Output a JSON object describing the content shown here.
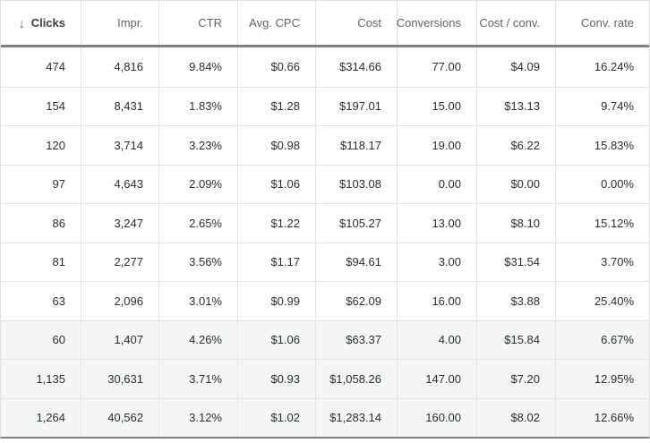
{
  "table": {
    "sort_icon": "↓",
    "columns": [
      {
        "key": "clicks",
        "label": "Clicks",
        "sorted": true
      },
      {
        "key": "impr",
        "label": "Impr."
      },
      {
        "key": "ctr",
        "label": "CTR"
      },
      {
        "key": "avg_cpc",
        "label": "Avg. CPC"
      },
      {
        "key": "cost",
        "label": "Cost"
      },
      {
        "key": "conversions",
        "label": "Conversions"
      },
      {
        "key": "cost_per_conv",
        "label": "Cost / conv."
      },
      {
        "key": "conv_rate",
        "label": "Conv. rate"
      }
    ],
    "rows": [
      {
        "clicks": "474",
        "impr": "4,816",
        "ctr": "9.84%",
        "avg_cpc": "$0.66",
        "cost": "$314.66",
        "conversions": "77.00",
        "cost_per_conv": "$4.09",
        "conv_rate": "16.24%",
        "is_total": false
      },
      {
        "clicks": "154",
        "impr": "8,431",
        "ctr": "1.83%",
        "avg_cpc": "$1.28",
        "cost": "$197.01",
        "conversions": "15.00",
        "cost_per_conv": "$13.13",
        "conv_rate": "9.74%",
        "is_total": false
      },
      {
        "clicks": "120",
        "impr": "3,714",
        "ctr": "3.23%",
        "avg_cpc": "$0.98",
        "cost": "$118.17",
        "conversions": "19.00",
        "cost_per_conv": "$6.22",
        "conv_rate": "15.83%",
        "is_total": false
      },
      {
        "clicks": "97",
        "impr": "4,643",
        "ctr": "2.09%",
        "avg_cpc": "$1.06",
        "cost": "$103.08",
        "conversions": "0.00",
        "cost_per_conv": "$0.00",
        "conv_rate": "0.00%",
        "is_total": false
      },
      {
        "clicks": "86",
        "impr": "3,247",
        "ctr": "2.65%",
        "avg_cpc": "$1.22",
        "cost": "$105.27",
        "conversions": "13.00",
        "cost_per_conv": "$8.10",
        "conv_rate": "15.12%",
        "is_total": false
      },
      {
        "clicks": "81",
        "impr": "2,277",
        "ctr": "3.56%",
        "avg_cpc": "$1.17",
        "cost": "$94.61",
        "conversions": "3.00",
        "cost_per_conv": "$31.54",
        "conv_rate": "3.70%",
        "is_total": false
      },
      {
        "clicks": "63",
        "impr": "2,096",
        "ctr": "3.01%",
        "avg_cpc": "$0.99",
        "cost": "$62.09",
        "conversions": "16.00",
        "cost_per_conv": "$3.88",
        "conv_rate": "25.40%",
        "is_total": false
      },
      {
        "clicks": "60",
        "impr": "1,407",
        "ctr": "4.26%",
        "avg_cpc": "$1.06",
        "cost": "$63.37",
        "conversions": "4.00",
        "cost_per_conv": "$15.84",
        "conv_rate": "6.67%",
        "is_total": true
      },
      {
        "clicks": "1,135",
        "impr": "30,631",
        "ctr": "3.71%",
        "avg_cpc": "$0.93",
        "cost": "$1,058.26",
        "conversions": "147.00",
        "cost_per_conv": "$7.20",
        "conv_rate": "12.95%",
        "is_total": true
      },
      {
        "clicks": "1,264",
        "impr": "40,562",
        "ctr": "3.12%",
        "avg_cpc": "$1.02",
        "cost": "$1,283.14",
        "conversions": "160.00",
        "cost_per_conv": "$8.02",
        "conv_rate": "12.66%",
        "is_total": true
      }
    ]
  },
  "colors": {
    "header_rule": "#7d8084",
    "row_divider": "#e3e3e3",
    "total_row_bg": "#f4f5f5",
    "header_text": "#5f6368",
    "data_text": "#2b2e31"
  }
}
